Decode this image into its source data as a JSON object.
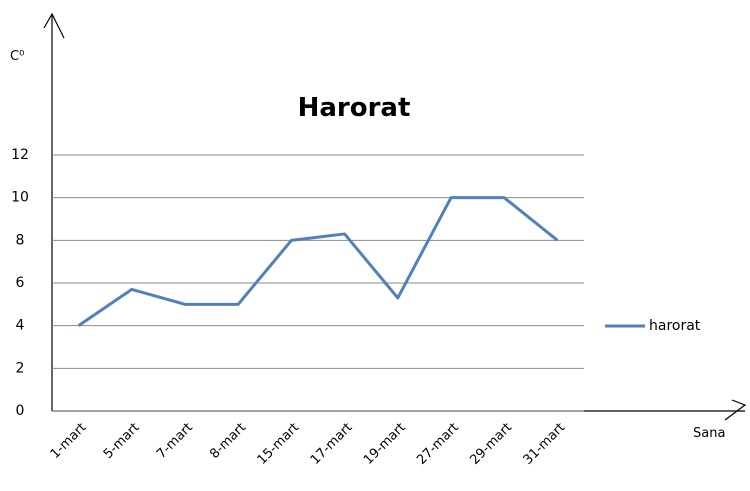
{
  "chart_data": {
    "type": "line",
    "title": "Harorat",
    "y_label": "C⁰",
    "x_label": "Sana",
    "categories": [
      "1-mart",
      "5-mart",
      "7-mart",
      "8-mart",
      "15-mart",
      "17-mart",
      "19-mart",
      "27-mart",
      "29-mart",
      "31-mart"
    ],
    "series": [
      {
        "name": "harorat",
        "color": "#4f81bd",
        "values": [
          4,
          5.7,
          5,
          5,
          8,
          8.3,
          5.3,
          10,
          10,
          8
        ]
      }
    ],
    "ylim": [
      0,
      12
    ],
    "yticks": [
      0,
      2,
      4,
      6,
      8,
      10,
      12
    ],
    "grid": true,
    "legend": "right"
  }
}
